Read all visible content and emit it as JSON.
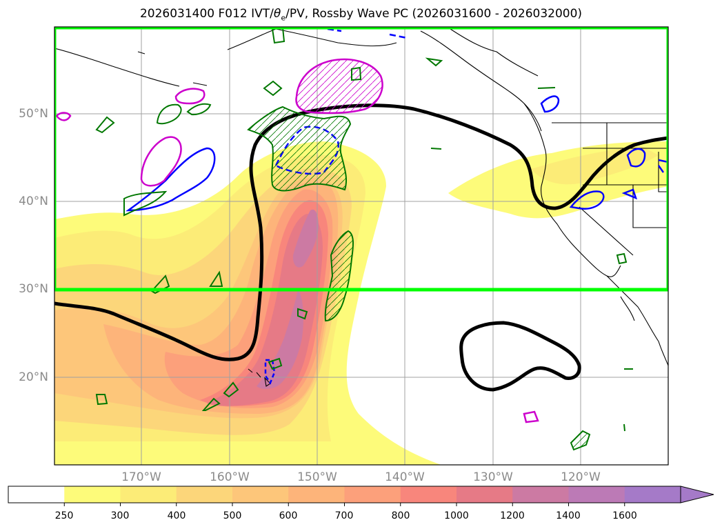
{
  "title": {
    "prefix": "2026031400 F012 IVT/",
    "theta": "θ",
    "theta_sub": "e",
    "suffix": "/PV, Rossby Wave PC (2026031600 - 2026032000)"
  },
  "map": {
    "lat_labels": [
      "50°N",
      "40°N",
      "30°N",
      "20°N"
    ],
    "lon_labels": [
      "170°W",
      "160°W",
      "150°W",
      "140°W",
      "130°W",
      "120°W"
    ],
    "extent": {
      "lon": [
        -180,
        -110
      ],
      "lat": [
        10,
        60
      ]
    },
    "highlight_box": {
      "lon": [
        -180,
        -110
      ],
      "lat": [
        30,
        60
      ],
      "color": "#00ff00"
    },
    "contour_colors": {
      "pv": "#000000",
      "positive": "#0000ff",
      "negative": "#cc00cc",
      "theta": "#007700"
    }
  },
  "colorbar": {
    "levels": [
      "250",
      "300",
      "400",
      "500",
      "600",
      "700",
      "800",
      "1000",
      "1200",
      "1400",
      "1600"
    ],
    "colors": [
      "#ffffff",
      "#fdfb7a",
      "#fcec77",
      "#fcd67a",
      "#fdc67a",
      "#fdb47a",
      "#fca07b",
      "#f8867c",
      "#e67a86",
      "#cc7aa3",
      "#bc7ab6",
      "#a57ac8"
    ]
  }
}
